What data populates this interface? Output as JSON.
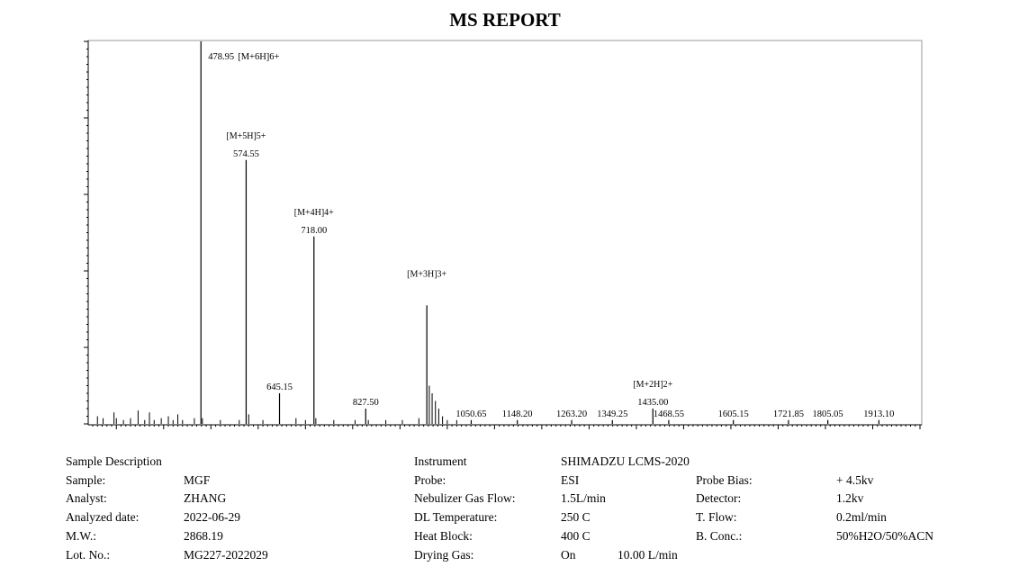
{
  "report": {
    "title": "MS REPORT"
  },
  "sample": {
    "heading": "Sample Description",
    "rows": [
      {
        "label": "Sample:",
        "value": "MGF"
      },
      {
        "label": "Analyst:",
        "value": "ZHANG"
      },
      {
        "label": "Analyzed date:",
        "value": "2022-06-29"
      },
      {
        "label": "M.W.:",
        "value": "2868.19"
      },
      {
        "label": "Lot. No.:",
        "value": "MG227-2022029"
      }
    ]
  },
  "instrument": {
    "heading": "Instrument",
    "name": "SHIMADZU LCMS-2020",
    "rows": [
      {
        "label": "Probe:",
        "value": "ESI"
      },
      {
        "label": "Nebulizer Gas Flow:",
        "value": "1.5L/min"
      },
      {
        "label": "DL Temperature:",
        "value": "250 C"
      },
      {
        "label": "Heat Block:",
        "value": "400 C"
      },
      {
        "label": "Drying Gas:",
        "value": "On",
        "extra": "10.00 L/min"
      }
    ],
    "rows2": [
      {
        "label": "Probe Bias:",
        "value": "+ 4.5kv"
      },
      {
        "label": "Detector:",
        "value": "1.2kv"
      },
      {
        "label": "T. Flow:",
        "value": "0.2ml/min"
      },
      {
        "label": "B. Conc.:",
        "value": "50%H2O/50%ACN"
      }
    ]
  },
  "chart_data": {
    "type": "bar",
    "title": "MS REPORT",
    "xlabel": "",
    "ylabel": "",
    "xlim": [
      250,
      2000
    ],
    "ylim": [
      0,
      100
    ],
    "grid": false,
    "peaks": [
      {
        "mz": 478.95,
        "intensity": 100,
        "label": "478.95",
        "ion": "[M+6H]6+"
      },
      {
        "mz": 574.55,
        "intensity": 69,
        "label": "574.55",
        "ion": "[M+5H]5+"
      },
      {
        "mz": 645.15,
        "intensity": 8,
        "label": "645.15",
        "ion": ""
      },
      {
        "mz": 718.0,
        "intensity": 49,
        "label": "718.00",
        "ion": "[M+4H]4+"
      },
      {
        "mz": 827.5,
        "intensity": 4,
        "label": "827.50",
        "ion": ""
      },
      {
        "mz": 956.8,
        "intensity": 31,
        "label": "",
        "ion": "[M+3H]3+"
      },
      {
        "mz": 1050.65,
        "intensity": 1,
        "label": "1050.65",
        "ion": ""
      },
      {
        "mz": 1148.2,
        "intensity": 1,
        "label": "1148.20",
        "ion": ""
      },
      {
        "mz": 1263.2,
        "intensity": 1,
        "label": "1263.20",
        "ion": ""
      },
      {
        "mz": 1349.25,
        "intensity": 1,
        "label": "1349.25",
        "ion": ""
      },
      {
        "mz": 1435.0,
        "intensity": 4,
        "label": "1435.00",
        "ion": "[M+2H]2+"
      },
      {
        "mz": 1468.55,
        "intensity": 1,
        "label": "1468.55",
        "ion": ""
      },
      {
        "mz": 1605.15,
        "intensity": 1,
        "label": "1605.15",
        "ion": ""
      },
      {
        "mz": 1721.85,
        "intensity": 1,
        "label": "1721.85",
        "ion": ""
      },
      {
        "mz": 1805.05,
        "intensity": 1,
        "label": "1805.05",
        "ion": ""
      },
      {
        "mz": 1913.1,
        "intensity": 1,
        "label": "1913.10",
        "ion": ""
      }
    ],
    "minor_peaks": [
      {
        "mz": 260,
        "intensity": 2
      },
      {
        "mz": 272,
        "intensity": 1.5
      },
      {
        "mz": 295,
        "intensity": 3
      },
      {
        "mz": 300,
        "intensity": 1.5
      },
      {
        "mz": 315,
        "intensity": 1
      },
      {
        "mz": 330,
        "intensity": 1.5
      },
      {
        "mz": 346,
        "intensity": 3.5
      },
      {
        "mz": 360,
        "intensity": 1
      },
      {
        "mz": 370,
        "intensity": 3
      },
      {
        "mz": 380,
        "intensity": 1
      },
      {
        "mz": 395,
        "intensity": 1.5
      },
      {
        "mz": 410,
        "intensity": 2
      },
      {
        "mz": 420,
        "intensity": 1
      },
      {
        "mz": 430,
        "intensity": 2.5
      },
      {
        "mz": 440,
        "intensity": 1
      },
      {
        "mz": 465,
        "intensity": 1.5
      },
      {
        "mz": 482,
        "intensity": 1.5
      },
      {
        "mz": 520,
        "intensity": 1
      },
      {
        "mz": 560,
        "intensity": 1
      },
      {
        "mz": 580,
        "intensity": 2.5
      },
      {
        "mz": 610,
        "intensity": 1
      },
      {
        "mz": 680,
        "intensity": 1.5
      },
      {
        "mz": 700,
        "intensity": 1
      },
      {
        "mz": 722,
        "intensity": 1.5
      },
      {
        "mz": 760,
        "intensity": 1
      },
      {
        "mz": 805,
        "intensity": 1
      },
      {
        "mz": 833,
        "intensity": 1
      },
      {
        "mz": 870,
        "intensity": 1
      },
      {
        "mz": 905,
        "intensity": 1
      },
      {
        "mz": 940,
        "intensity": 1.5
      },
      {
        "mz": 962,
        "intensity": 10
      },
      {
        "mz": 968,
        "intensity": 8
      },
      {
        "mz": 975,
        "intensity": 6
      },
      {
        "mz": 982,
        "intensity": 4
      },
      {
        "mz": 990,
        "intensity": 2
      },
      {
        "mz": 1000,
        "intensity": 1
      },
      {
        "mz": 1020,
        "intensity": 1
      }
    ]
  }
}
